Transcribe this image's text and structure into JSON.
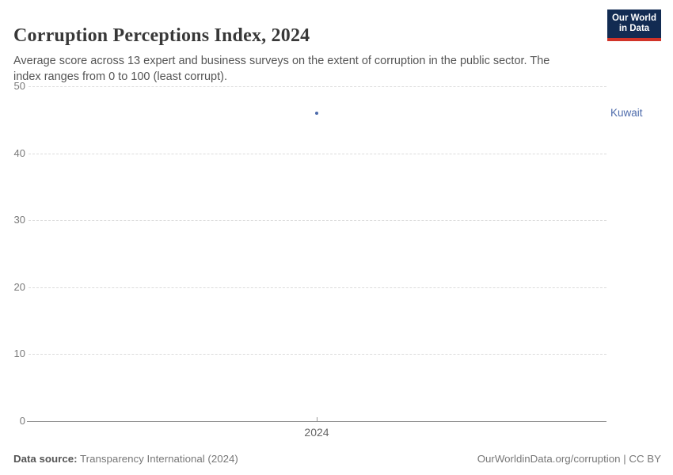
{
  "header": {
    "title": "Corruption Perceptions Index, 2024",
    "subtitle": "Average score across 13 expert and business surveys on the extent of corruption in the public sector. The index ranges from 0 to 100 (least corrupt).",
    "logo": {
      "line1": "Our World",
      "line2": "in Data",
      "bg_color": "#122b52",
      "bar_color": "#d13328"
    }
  },
  "chart_data": {
    "type": "scatter",
    "title": "Corruption Perceptions Index, 2024",
    "x": [
      2024
    ],
    "xticks": [
      "2024"
    ],
    "series": [
      {
        "name": "Kuwait",
        "values": [
          46
        ],
        "color": "#4d6bab"
      }
    ],
    "ylim": [
      0,
      50
    ],
    "yticks": [
      0,
      10,
      20,
      30,
      40,
      50
    ],
    "xlabel": "",
    "ylabel": "",
    "grid": "horizontal-dashed",
    "legend_position": "right-of-plot"
  },
  "footer": {
    "source_label": "Data source:",
    "source_value": "Transparency International (2024)",
    "right_text": "OurWorldinData.org/corruption | CC BY"
  }
}
